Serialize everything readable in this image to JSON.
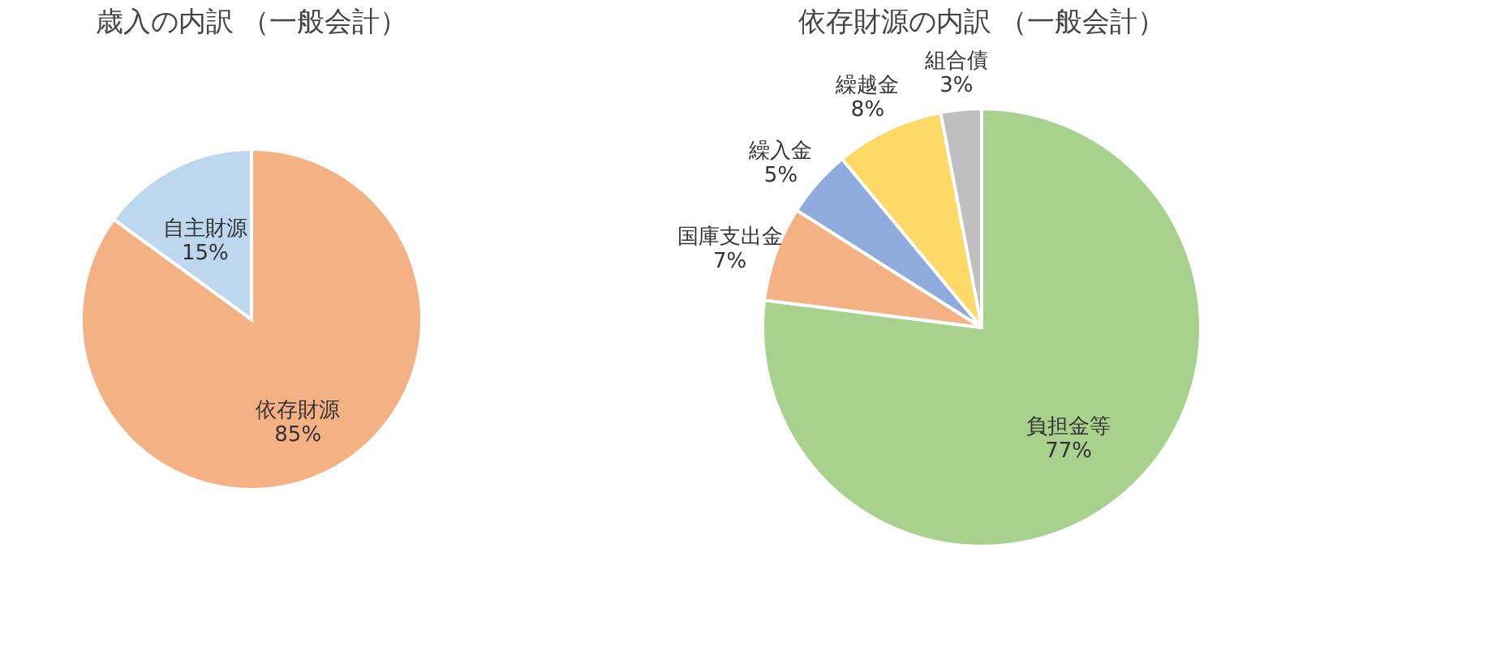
{
  "chart_data": [
    {
      "type": "pie",
      "title": "歳入の内訳 （一般会計）",
      "categories": [
        "依存財源",
        "自主財源"
      ],
      "values": [
        85,
        15
      ],
      "value_labels": [
        "85%",
        "15%"
      ],
      "colors": [
        "#f4b183",
        "#bdd7ee"
      ],
      "legend": false
    },
    {
      "type": "pie",
      "title": "依存財源の内訳 （一般会計）",
      "categories": [
        "負担金等",
        "国庫支出金",
        "繰入金",
        "繰越金",
        "組合債"
      ],
      "values": [
        77,
        7,
        5,
        8,
        3
      ],
      "value_labels": [
        "77%",
        "7%",
        "5%",
        "8%",
        "3%"
      ],
      "colors": [
        "#a9d18e",
        "#f4b183",
        "#8faadc",
        "#ffd966",
        "#bfbfbf"
      ],
      "legend": false
    }
  ]
}
